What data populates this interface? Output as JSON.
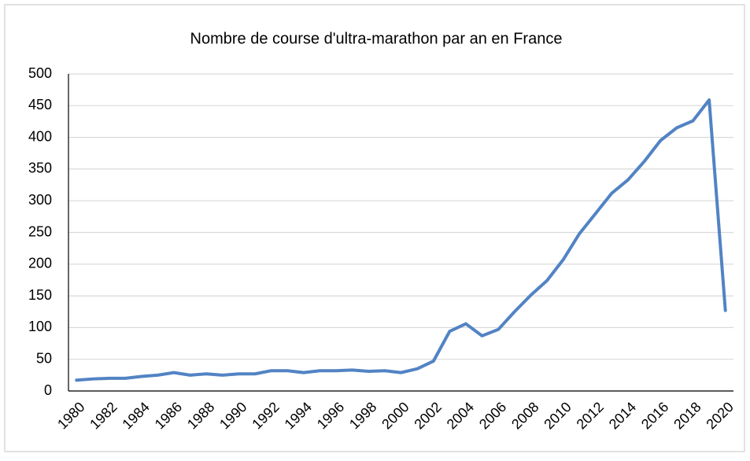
{
  "chart_data": {
    "type": "line",
    "title": "Nombre de course d'ultra-marathon par an en France",
    "categories": [
      "1980",
      null,
      "1982",
      null,
      "1984",
      null,
      "1986",
      null,
      "1988",
      null,
      "1990",
      null,
      "1992",
      null,
      "1994",
      null,
      "1996",
      null,
      "1998",
      null,
      "2000",
      null,
      "2002",
      null,
      "2004",
      null,
      "2006",
      null,
      "2008",
      null,
      "2010",
      null,
      "2012",
      null,
      "2014",
      null,
      "2016",
      null,
      "2018",
      null,
      "2020"
    ],
    "values": [
      17,
      19,
      20,
      20,
      23,
      25,
      29,
      25,
      27,
      25,
      27,
      27,
      32,
      32,
      29,
      32,
      32,
      33,
      31,
      32,
      29,
      35,
      47,
      94,
      106,
      87,
      97,
      125,
      151,
      174,
      207,
      248,
      280,
      312,
      333,
      362,
      395,
      415,
      426,
      459,
      127
    ],
    "color": "#5283c4",
    "ylim": [
      0,
      500
    ],
    "yticks": [
      0,
      50,
      100,
      150,
      200,
      250,
      300,
      350,
      400,
      450,
      500
    ],
    "grid": true
  }
}
